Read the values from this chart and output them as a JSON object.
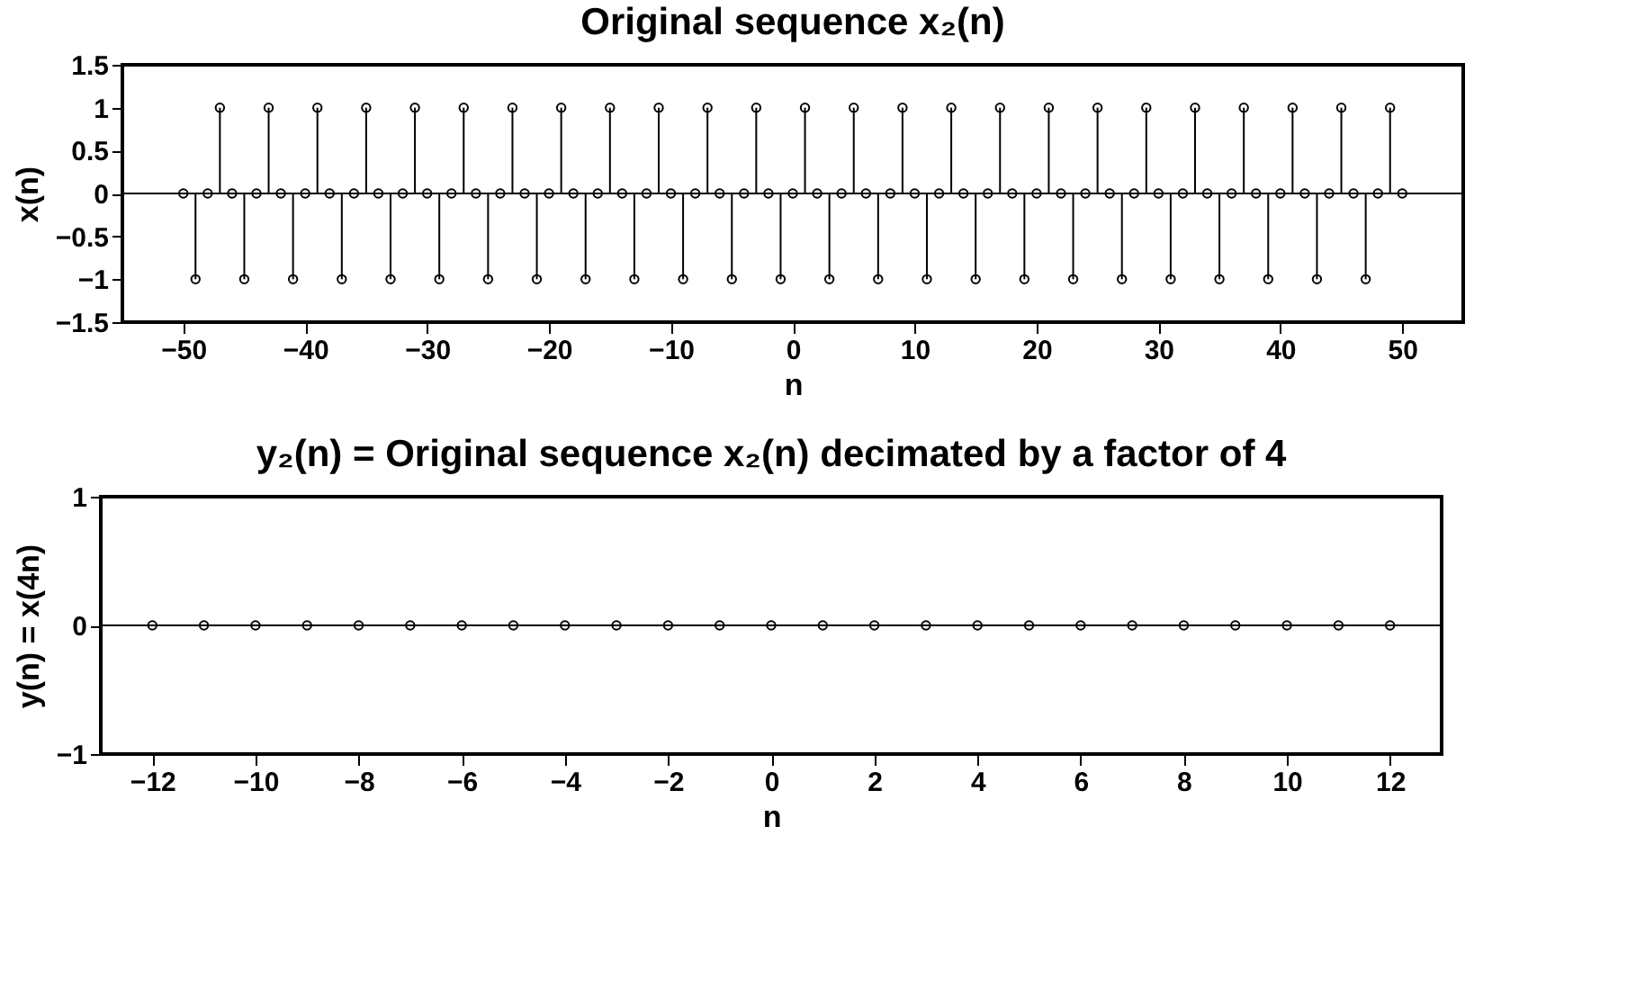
{
  "chart_data": [
    {
      "type": "lollipop",
      "title": "Original sequence x₂(n)",
      "xlabel": "n",
      "ylabel": "x(n)",
      "x": [
        -50,
        -49,
        -48,
        -47,
        -46,
        -45,
        -44,
        -43,
        -42,
        -41,
        -40,
        -39,
        -38,
        -37,
        -36,
        -35,
        -34,
        -33,
        -32,
        -31,
        -30,
        -29,
        -28,
        -27,
        -26,
        -25,
        -24,
        -23,
        -22,
        -21,
        -20,
        -19,
        -18,
        -17,
        -16,
        -15,
        -14,
        -13,
        -12,
        -11,
        -10,
        -9,
        -8,
        -7,
        -6,
        -5,
        -4,
        -3,
        -2,
        -1,
        0,
        1,
        2,
        3,
        4,
        5,
        6,
        7,
        8,
        9,
        10,
        11,
        12,
        13,
        14,
        15,
        16,
        17,
        18,
        19,
        20,
        21,
        22,
        23,
        24,
        25,
        26,
        27,
        28,
        29,
        30,
        31,
        32,
        33,
        34,
        35,
        36,
        37,
        38,
        39,
        40,
        41,
        42,
        43,
        44,
        45,
        46,
        47,
        48,
        49,
        50
      ],
      "values": [
        0,
        -1,
        0,
        1,
        0,
        -1,
        0,
        1,
        0,
        -1,
        0,
        1,
        0,
        -1,
        0,
        1,
        0,
        -1,
        0,
        1,
        0,
        -1,
        0,
        1,
        0,
        -1,
        0,
        1,
        0,
        -1,
        0,
        1,
        0,
        -1,
        0,
        1,
        0,
        -1,
        0,
        1,
        0,
        -1,
        0,
        1,
        0,
        -1,
        0,
        1,
        0,
        -1,
        0,
        1,
        0,
        -1,
        0,
        1,
        0,
        -1,
        0,
        1,
        0,
        -1,
        0,
        1,
        0,
        -1,
        0,
        1,
        0,
        -1,
        0,
        1,
        0,
        -1,
        0,
        1,
        0,
        -1,
        0,
        1,
        0,
        -1,
        0,
        1,
        0,
        -1,
        0,
        1,
        0,
        -1,
        0,
        1,
        0,
        -1,
        0,
        1,
        0,
        -1,
        0,
        1,
        0
      ],
      "color": "#000000",
      "marker": "circle",
      "xlim": [
        -55,
        55
      ],
      "xticks": [
        -50,
        -40,
        -30,
        -20,
        -10,
        0,
        10,
        20,
        30,
        40,
        50
      ],
      "ylim": [
        -1.5,
        1.5
      ],
      "yticks": [
        -1.5,
        -1,
        -0.5,
        0,
        0.5,
        1,
        1.5
      ],
      "ref_lines": [
        {
          "axis": "y",
          "value": 0,
          "color": "#000000"
        }
      ]
    },
    {
      "type": "lollipop",
      "title": "y₂(n) = Original sequence x₂(n) decimated by a factor of 4",
      "xlabel": "n",
      "ylabel": "y(n) = x(4n)",
      "x": [
        -12,
        -11,
        -10,
        -9,
        -8,
        -7,
        -6,
        -5,
        -4,
        -3,
        -2,
        -1,
        0,
        1,
        2,
        3,
        4,
        5,
        6,
        7,
        8,
        9,
        10,
        11,
        12
      ],
      "values": [
        0,
        0,
        0,
        0,
        0,
        0,
        0,
        0,
        0,
        0,
        0,
        0,
        0,
        0,
        0,
        0,
        0,
        0,
        0,
        0,
        0,
        0,
        0,
        0,
        0
      ],
      "color": "#000000",
      "marker": "circle",
      "xlim": [
        -13,
        13
      ],
      "xticks": [
        -12,
        -10,
        -8,
        -6,
        -4,
        -2,
        0,
        2,
        4,
        6,
        8,
        10,
        12
      ],
      "ylim": [
        -1,
        1
      ],
      "yticks": [
        -1,
        0,
        1
      ],
      "ref_lines": [
        {
          "axis": "y",
          "value": 0,
          "color": "#000000"
        }
      ]
    }
  ]
}
